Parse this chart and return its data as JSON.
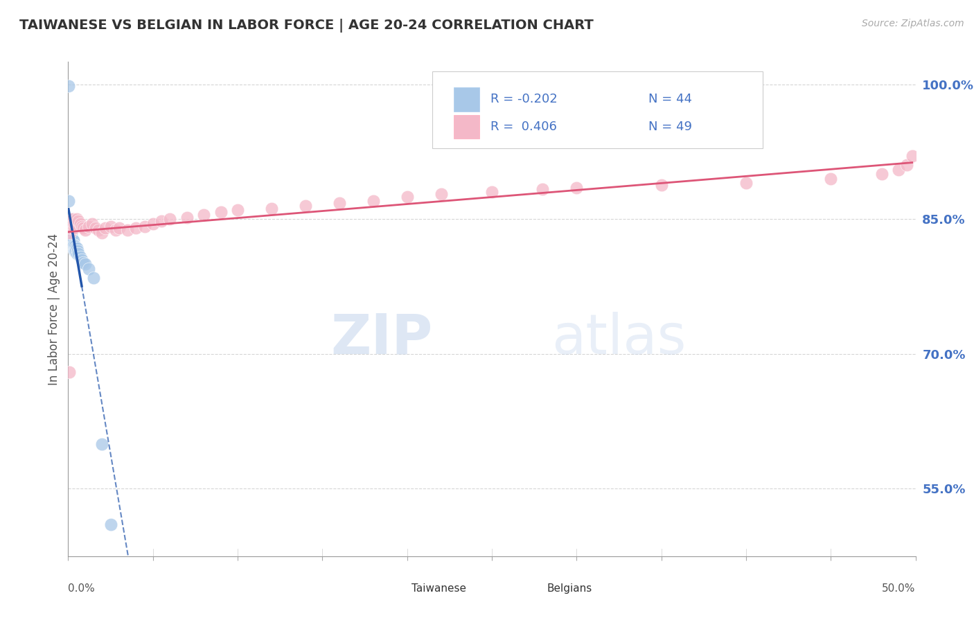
{
  "title": "TAIWANESE VS BELGIAN IN LABOR FORCE | AGE 20-24 CORRELATION CHART",
  "source": "Source: ZipAtlas.com",
  "ylabel": "In Labor Force | Age 20-24",
  "right_yticks": [
    1.0,
    0.85,
    0.7,
    0.55
  ],
  "legend_r_taiwanese": "-0.202",
  "legend_n_taiwanese": "44",
  "legend_r_belgian": " 0.406",
  "legend_n_belgian": "49",
  "taiwanese_color": "#a8c8e8",
  "belgian_color": "#f4b8c8",
  "trend_taiwanese_color": "#2255aa",
  "trend_belgian_color": "#dd5577",
  "watermark_zip": "ZIP",
  "watermark_atlas": "atlas",
  "background_color": "#ffffff",
  "title_color": "#333333",
  "axis_label_color": "#555555",
  "right_axis_color": "#4472c4",
  "grid_color": "#cccccc",
  "xmin": 0.0,
  "xmax": 0.5,
  "ymin": 0.475,
  "ymax": 1.025,
  "taiwanese_x": [
    0.0002,
    0.0004,
    0.0006,
    0.0008,
    0.001,
    0.001,
    0.001,
    0.001,
    0.0012,
    0.0012,
    0.0014,
    0.0015,
    0.0016,
    0.0018,
    0.002,
    0.002,
    0.002,
    0.002,
    0.0022,
    0.0024,
    0.0026,
    0.0028,
    0.003,
    0.003,
    0.003,
    0.0032,
    0.0034,
    0.0036,
    0.004,
    0.004,
    0.0042,
    0.0045,
    0.005,
    0.005,
    0.0055,
    0.006,
    0.007,
    0.008,
    0.009,
    0.01,
    0.012,
    0.015,
    0.02,
    0.025
  ],
  "taiwanese_y": [
    0.998,
    0.87,
    0.85,
    0.845,
    0.84,
    0.838,
    0.835,
    0.83,
    0.838,
    0.832,
    0.835,
    0.828,
    0.825,
    0.82,
    0.832,
    0.828,
    0.825,
    0.82,
    0.828,
    0.825,
    0.822,
    0.82,
    0.826,
    0.822,
    0.818,
    0.82,
    0.818,
    0.815,
    0.82,
    0.815,
    0.818,
    0.815,
    0.818,
    0.812,
    0.815,
    0.812,
    0.808,
    0.805,
    0.802,
    0.8,
    0.795,
    0.785,
    0.6,
    0.51
  ],
  "belgian_x": [
    0.0005,
    0.001,
    0.0015,
    0.002,
    0.0025,
    0.003,
    0.0035,
    0.004,
    0.005,
    0.006,
    0.007,
    0.008,
    0.009,
    0.01,
    0.012,
    0.014,
    0.016,
    0.018,
    0.02,
    0.022,
    0.025,
    0.028,
    0.03,
    0.035,
    0.04,
    0.045,
    0.05,
    0.055,
    0.06,
    0.07,
    0.08,
    0.09,
    0.1,
    0.12,
    0.14,
    0.16,
    0.18,
    0.2,
    0.22,
    0.25,
    0.28,
    0.3,
    0.35,
    0.4,
    0.45,
    0.48,
    0.49,
    0.495,
    0.498
  ],
  "belgian_y": [
    0.68,
    0.835,
    0.84,
    0.845,
    0.85,
    0.845,
    0.84,
    0.845,
    0.85,
    0.848,
    0.845,
    0.842,
    0.84,
    0.838,
    0.842,
    0.845,
    0.84,
    0.838,
    0.835,
    0.84,
    0.842,
    0.838,
    0.84,
    0.838,
    0.84,
    0.842,
    0.845,
    0.848,
    0.85,
    0.852,
    0.855,
    0.858,
    0.86,
    0.862,
    0.865,
    0.868,
    0.87,
    0.875,
    0.878,
    0.88,
    0.883,
    0.885,
    0.888,
    0.89,
    0.895,
    0.9,
    0.905,
    0.91,
    0.92
  ]
}
